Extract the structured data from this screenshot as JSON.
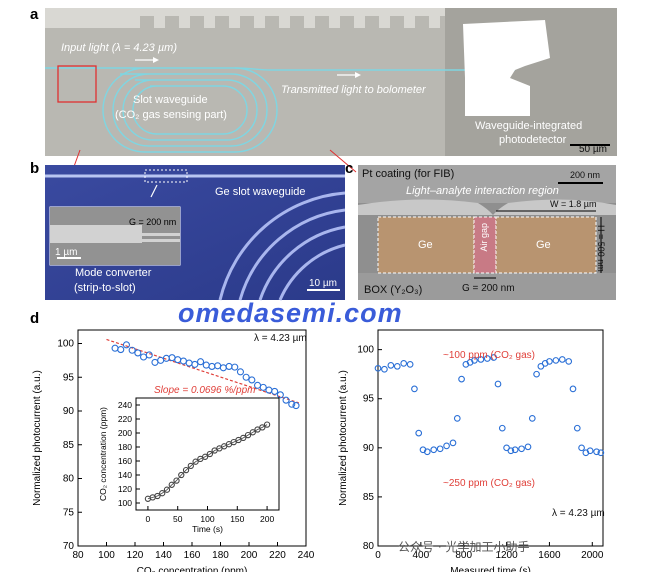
{
  "panels": {
    "a": {
      "letter": "a",
      "input_light": "Input light (λ = 4.23 µm)",
      "slot_waveguide": "Slot waveguide",
      "slot_sub": "(CO₂ gas sensing part)",
      "transmitted": "Transmitted light to bolometer",
      "photodetector_1": "Waveguide-integrated",
      "photodetector_2": "photodetector",
      "scale": "50 µm"
    },
    "b": {
      "letter": "b",
      "ge_slot": "Ge slot waveguide",
      "gap": "G = 200 nm",
      "inset_scale": "1 µm",
      "mode_conv_1": "Mode converter",
      "mode_conv_2": "(strip-to-slot)",
      "scale": "10 µm"
    },
    "c": {
      "letter": "c",
      "pt": "Pt coating (for FIB)",
      "scale": "200 nm",
      "interaction": "Light–analyte interaction region",
      "width": "W = 1.8 µm",
      "height": "H = 500 nm",
      "ge_left": "Ge",
      "ge_right": "Ge",
      "air_gap": "Air gap",
      "gap": "G = 200 nm",
      "box": "BOX (Y₂O₃)"
    },
    "d": {
      "letter": "d",
      "lambda": "λ = 4.23 µm",
      "slope": "Slope = 0.0696 %/ppm",
      "lambda_right": "λ = 4.23 µm",
      "ppm100": "~100 ppm (CO₂ gas)",
      "ppm250": "~250 ppm (CO₂ gas)"
    }
  },
  "watermark": "omedasemi.com",
  "wechat": "公众号 · 光学加工小助手",
  "chart_data": [
    {
      "type": "scatter",
      "title": "",
      "xlabel": "CO₂ concentration (ppm)",
      "ylabel": "Normalized photocurrent (a.u.)",
      "xlim": [
        80,
        240
      ],
      "ylim": [
        70,
        102
      ],
      "xticks": [
        "80",
        "100",
        "120",
        "140",
        "160",
        "180",
        "200",
        "220",
        "240"
      ],
      "yticks": [
        "70",
        "75",
        "80",
        "85",
        "90",
        "95",
        "100"
      ],
      "series": [
        {
          "x": [
            106,
            110,
            114,
            118,
            122,
            126,
            130,
            134,
            138,
            142,
            146,
            150,
            154,
            158,
            162,
            166,
            170,
            174,
            178,
            182,
            186,
            190,
            194,
            198,
            202,
            206,
            210,
            214,
            218,
            222,
            226,
            230,
            233
          ],
          "y": [
            99.3,
            99.1,
            99.8,
            99.0,
            98.6,
            98.0,
            98.3,
            97.2,
            97.5,
            97.8,
            97.9,
            97.6,
            97.4,
            97.1,
            96.9,
            97.3,
            96.8,
            96.6,
            96.7,
            96.4,
            96.6,
            96.5,
            95.8,
            95.0,
            94.6,
            93.8,
            93.5,
            93.1,
            92.9,
            92.4,
            91.6,
            91.0,
            90.8
          ]
        }
      ],
      "fit": {
        "x": [
          100,
          235
        ],
        "y": [
          100.6,
          91.2
        ]
      }
    },
    {
      "type": "line",
      "title": "",
      "xlabel": "Time (s)",
      "ylabel": "CO₂ concentration (ppm)",
      "xlim": [
        -20,
        220
      ],
      "ylim": [
        90,
        250
      ],
      "xticks": [
        "0",
        "50",
        "100",
        "150",
        "200"
      ],
      "yticks": [
        "100",
        "120",
        "140",
        "160",
        "180",
        "200",
        "220",
        "240"
      ],
      "series": [
        {
          "x": [
            0,
            8,
            16,
            24,
            32,
            40,
            48,
            56,
            64,
            72,
            80,
            88,
            96,
            104,
            112,
            120,
            128,
            136,
            144,
            152,
            160,
            168,
            176,
            184,
            192,
            200
          ],
          "y": [
            106,
            108,
            110,
            114,
            119,
            126,
            132,
            140,
            147,
            153,
            159,
            163,
            166,
            170,
            175,
            178,
            181,
            184,
            187,
            190,
            193,
            197,
            201,
            205,
            208,
            212
          ]
        }
      ]
    },
    {
      "type": "scatter",
      "title": "",
      "xlabel": "Measured time (s)",
      "ylabel": "Normalized photocurrent (a.u.)",
      "xlim": [
        0,
        2100
      ],
      "ylim": [
        80,
        102
      ],
      "xticks": [
        "0",
        "400",
        "800",
        "1200",
        "1600",
        "2000"
      ],
      "yticks": [
        "80",
        "85",
        "90",
        "95",
        "100"
      ],
      "series": [
        {
          "x": [
            0,
            60,
            120,
            180,
            240,
            300,
            340,
            380,
            420,
            460,
            520,
            580,
            640,
            700,
            740,
            780,
            820,
            860,
            900,
            960,
            1020,
            1080,
            1120,
            1160,
            1200,
            1240,
            1280,
            1340,
            1400,
            1440,
            1480,
            1520,
            1560,
            1600,
            1660,
            1720,
            1780,
            1820,
            1860,
            1900,
            1940,
            1980,
            2040,
            2080
          ],
          "y": [
            98.1,
            98.0,
            98.4,
            98.3,
            98.6,
            98.5,
            96.0,
            91.5,
            89.8,
            89.6,
            89.8,
            89.9,
            90.2,
            90.5,
            93.0,
            97.0,
            98.5,
            98.7,
            98.9,
            99.0,
            99.1,
            99.2,
            96.5,
            92.0,
            90.0,
            89.7,
            89.8,
            89.9,
            90.1,
            93.0,
            97.5,
            98.3,
            98.6,
            98.8,
            98.9,
            99.0,
            98.8,
            96.0,
            92.0,
            90.0,
            89.5,
            89.7,
            89.6,
            89.5
          ]
        }
      ]
    }
  ]
}
